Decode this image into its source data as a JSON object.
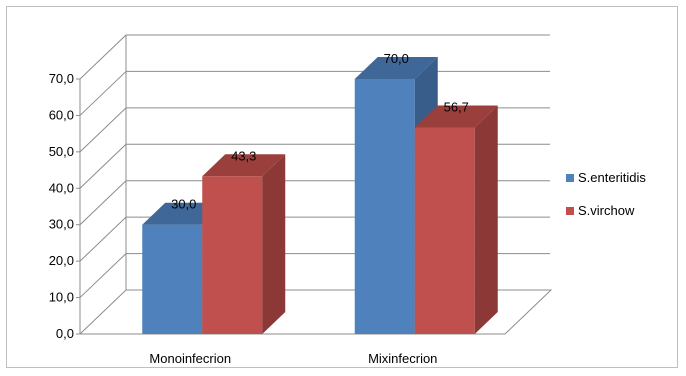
{
  "chart_data": {
    "type": "bar",
    "categories": [
      "Monoinfecrion",
      "Mixinfecrion"
    ],
    "series": [
      {
        "name": "S.enteritidis",
        "values": [
          30.0,
          70.0
        ],
        "labels": [
          "30,0",
          "70,0"
        ],
        "color": "#4f81bd",
        "top_color": "#3f6797",
        "side_color": "#385d8a"
      },
      {
        "name": "S.virchow",
        "values": [
          43.3,
          56.7
        ],
        "labels": [
          "43,3",
          "56,7"
        ],
        "color": "#c0504d",
        "top_color": "#9b3f3d",
        "side_color": "#8c3836"
      }
    ],
    "y_ticks": [
      "0,0",
      "10,0",
      "20,0",
      "30,0",
      "40,0",
      "50,0",
      "60,0",
      "70,0"
    ],
    "ylim": [
      0,
      70
    ],
    "grid": true,
    "legend_position": "right",
    "style": "3d-clustered-column"
  }
}
